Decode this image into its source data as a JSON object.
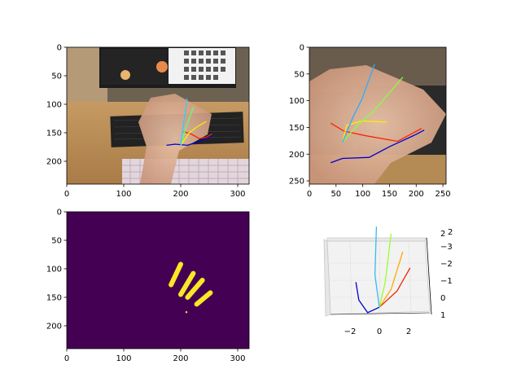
{
  "figure": {
    "background": "#ffffff"
  },
  "chart_data": [
    {
      "type": "image",
      "panel": "top-left",
      "description_of_axes": "image pixel coordinates",
      "xlim": [
        0,
        320
      ],
      "ylim": [
        240,
        0
      ],
      "xticks": [
        0,
        100,
        200,
        300
      ],
      "yticks": [
        0,
        50,
        100,
        150,
        200
      ],
      "hand_skeleton": [
        {
          "finger": "thumb",
          "color": "#0000cc",
          "points": [
            [
              175,
              172
            ],
            [
              190,
              170
            ],
            [
              212,
              172
            ],
            [
              232,
              165
            ],
            [
              255,
              155
            ]
          ]
        },
        {
          "finger": "index",
          "color": "#ff2200",
          "points": [
            [
              205,
              148
            ],
            [
              218,
              152
            ],
            [
              232,
              160
            ],
            [
              245,
              158
            ],
            [
              255,
              152
            ]
          ]
        },
        {
          "finger": "middle",
          "color": "#ffee00",
          "points": [
            [
              200,
              172
            ],
            [
              215,
              150
            ],
            [
              228,
              140
            ],
            [
              245,
              130
            ]
          ]
        },
        {
          "finger": "ring",
          "color": "#66ff66",
          "points": [
            [
              200,
              172
            ],
            [
              208,
              145
            ],
            [
              215,
              125
            ],
            [
              222,
              105
            ]
          ]
        },
        {
          "finger": "pinky",
          "color": "#33ccff",
          "points": [
            [
              200,
              172
            ],
            [
              204,
              140
            ],
            [
              208,
              115
            ],
            [
              211,
              90
            ]
          ]
        }
      ]
    },
    {
      "type": "image",
      "panel": "top-right",
      "xlim": [
        0,
        256
      ],
      "ylim": [
        256,
        0
      ],
      "xticks": [
        0,
        50,
        100,
        150,
        200,
        250
      ],
      "yticks": [
        0,
        50,
        100,
        150,
        200,
        250
      ],
      "hand_skeleton": [
        {
          "finger": "thumb",
          "color": "#0000cc",
          "points": [
            [
              40,
              216
            ],
            [
              62,
              208
            ],
            [
              112,
              206
            ],
            [
              150,
              186
            ],
            [
              200,
              163
            ],
            [
              215,
              155
            ]
          ]
        },
        {
          "finger": "index",
          "color": "#ff2200",
          "points": [
            [
              40,
              142
            ],
            [
              65,
              157
            ],
            [
              108,
              166
            ],
            [
              165,
              176
            ],
            [
              210,
              152
            ]
          ]
        },
        {
          "finger": "middle",
          "color": "#ffee00",
          "points": [
            [
              62,
              178
            ],
            [
              70,
              146
            ],
            [
              98,
              138
            ],
            [
              145,
              140
            ]
          ]
        },
        {
          "finger": "ring",
          "color": "#88ff44",
          "points": [
            [
              62,
              178
            ],
            [
              88,
              148
            ],
            [
              120,
              120
            ],
            [
              175,
              56
            ]
          ]
        },
        {
          "finger": "pinky",
          "color": "#33aaff",
          "points": [
            [
              62,
              178
            ],
            [
              82,
              130
            ],
            [
              98,
              98
            ],
            [
              122,
              32
            ]
          ]
        }
      ]
    },
    {
      "type": "heatmap",
      "panel": "bottom-left",
      "xlim": [
        0,
        320
      ],
      "ylim": [
        240,
        0
      ],
      "xticks": [
        0,
        100,
        200,
        300
      ],
      "yticks": [
        0,
        50,
        100,
        150,
        200
      ],
      "background_color": "#440154",
      "foreground_color": "#fde725",
      "mask_strokes": [
        [
          [
            183,
            128
          ],
          [
            200,
            92
          ]
        ],
        [
          [
            200,
            145
          ],
          [
            222,
            108
          ]
        ],
        [
          [
            212,
            150
          ],
          [
            238,
            120
          ]
        ],
        [
          [
            228,
            162
          ],
          [
            252,
            142
          ]
        ]
      ]
    },
    {
      "type": "line3d",
      "panel": "bottom-right",
      "x_ticks": [
        "−2",
        "0",
        "2"
      ],
      "y_ticks": [
        "2",
        "−3",
        "−2",
        "−1",
        "0",
        "1"
      ],
      "z_ticks": [
        "2"
      ],
      "series": [
        {
          "color": "#0000cc",
          "points": [
            [
              -1.6,
              0.8
            ],
            [
              -1.4,
              -0.2
            ],
            [
              -0.8,
              -0.9
            ],
            [
              0,
              -0.6
            ]
          ]
        },
        {
          "color": "#ee2200",
          "points": [
            [
              0,
              -0.6
            ],
            [
              1.2,
              0.3
            ],
            [
              2.1,
              1.6
            ]
          ]
        },
        {
          "color": "#ffaa00",
          "points": [
            [
              0,
              -0.6
            ],
            [
              0.8,
              0.4
            ],
            [
              1.6,
              2.5
            ]
          ]
        },
        {
          "color": "#99ff33",
          "points": [
            [
              0,
              -0.6
            ],
            [
              0.4,
              0.8
            ],
            [
              0.8,
              3.5
            ]
          ]
        },
        {
          "color": "#33bbee",
          "points": [
            [
              0,
              -0.6
            ],
            [
              -0.3,
              1.2
            ],
            [
              -0.2,
              3.9
            ]
          ]
        }
      ]
    }
  ]
}
